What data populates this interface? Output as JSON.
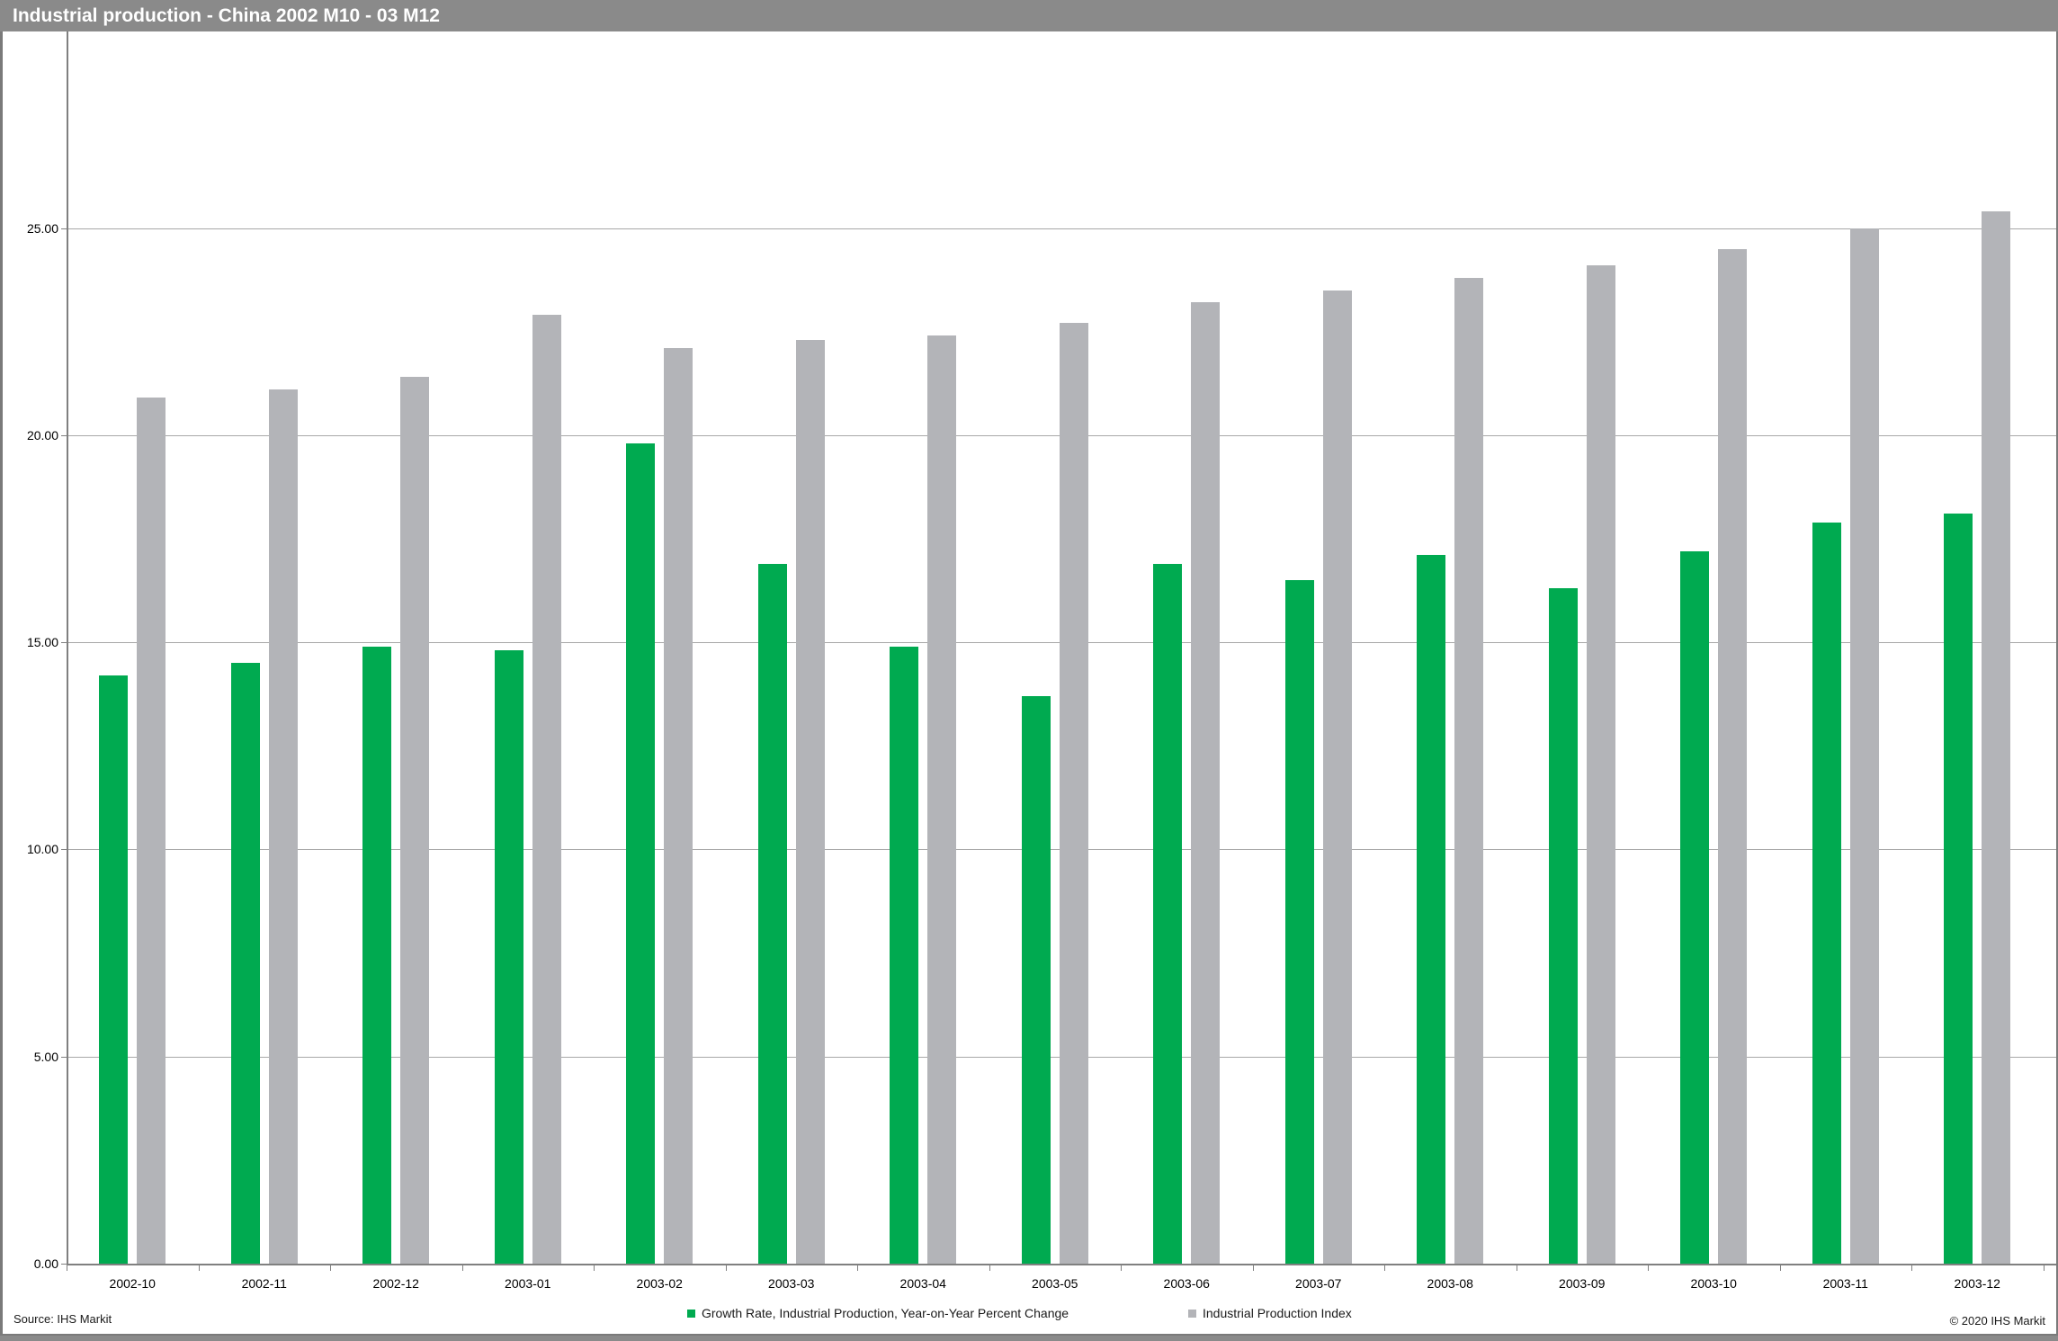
{
  "header": {
    "title": "Industrial production - China 2002 M10 - 03 M12"
  },
  "footer": {
    "source": "Source: IHS Markit",
    "copyright": "© 2020 IHS Markit"
  },
  "legend": {
    "position": "bottom",
    "items": [
      {
        "label": "Growth Rate, Industrial Production, Year-on-Year Percent Change",
        "color": "#00aa50"
      },
      {
        "label": "Industrial Production Index",
        "color": "#b3b4b8"
      }
    ]
  },
  "chart_data": {
    "type": "bar",
    "title": "Industrial production - China 2002 M10 - 03 M12",
    "xlabel": "",
    "ylabel": "",
    "categories": [
      "2002-10",
      "2002-11",
      "2002-12",
      "2003-01",
      "2003-02",
      "2003-03",
      "2003-04",
      "2003-05",
      "2003-06",
      "2003-07",
      "2003-08",
      "2003-09",
      "2003-10",
      "2003-11",
      "2003-12"
    ],
    "series": [
      {
        "name": "Growth Rate, Industrial Production, Year-on-Year Percent Change",
        "color": "#00aa50",
        "values": [
          14.2,
          14.5,
          14.9,
          14.8,
          19.8,
          16.9,
          14.9,
          13.7,
          16.9,
          16.5,
          17.1,
          16.3,
          17.2,
          17.9,
          18.1
        ]
      },
      {
        "name": "Industrial Production Index",
        "color": "#b3b4b8",
        "values": [
          20.9,
          21.1,
          21.4,
          22.9,
          22.1,
          22.3,
          22.4,
          22.7,
          23.2,
          23.5,
          23.8,
          24.1,
          24.5,
          25.0,
          25.4
        ]
      }
    ],
    "ylim": [
      0,
      29.7
    ],
    "yticks": [
      {
        "value": 0,
        "label": "0.00"
      },
      {
        "value": 5,
        "label": "5.00"
      },
      {
        "value": 10,
        "label": "10.00"
      },
      {
        "value": 15,
        "label": "15.00"
      },
      {
        "value": 20,
        "label": "20.00"
      },
      {
        "value": 25,
        "label": "25.00"
      }
    ],
    "grid": true,
    "legend_position": "bottom"
  }
}
